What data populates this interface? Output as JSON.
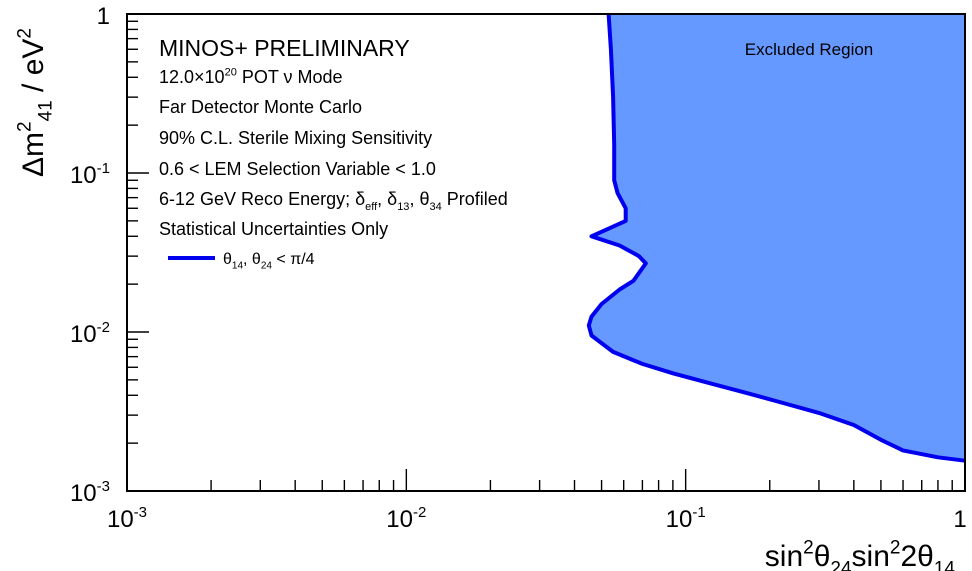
{
  "chart_data": {
    "type": "area",
    "x_scale": "log",
    "y_scale": "log",
    "xlim": [
      0.001,
      1
    ],
    "ylim": [
      0.001,
      1
    ],
    "xlabel": {
      "parts": [
        {
          "t": "sin"
        },
        {
          "t": "2",
          "s": "sup"
        },
        {
          "t": "θ"
        },
        {
          "t": "24",
          "s": "sub"
        },
        {
          "t": "sin"
        },
        {
          "t": "2",
          "s": "sup"
        },
        {
          "t": "2θ"
        },
        {
          "t": "14",
          "s": "sub"
        }
      ]
    },
    "ylabel": {
      "parts": [
        {
          "t": "Δm"
        },
        {
          "t": "2",
          "s": "sup"
        },
        {
          "t": "41",
          "s": "sub"
        },
        {
          "t": " / eV"
        },
        {
          "t": "2",
          "s": "sup"
        }
      ]
    },
    "x_ticks": [
      {
        "value": 0.001,
        "base": "10",
        "exp": "-3"
      },
      {
        "value": 0.01,
        "base": "10",
        "exp": "-2"
      },
      {
        "value": 0.1,
        "base": "10",
        "exp": "-1"
      },
      {
        "value": 1,
        "base": "1",
        "exp": ""
      }
    ],
    "y_ticks": [
      {
        "value": 0.001,
        "base": "10",
        "exp": "-3"
      },
      {
        "value": 0.01,
        "base": "10",
        "exp": "-2"
      },
      {
        "value": 0.1,
        "base": "10",
        "exp": "-1"
      },
      {
        "value": 1,
        "base": "1",
        "exp": ""
      }
    ],
    "fill_color": "#6699ff",
    "line_color": "#0000ee",
    "title_color": "#ff0000",
    "region_label": "Excluded Region",
    "annotation_lines": [
      {
        "color": "#ff0000",
        "size": "large",
        "parts": [
          {
            "t": "MINOS+ PRELIMINARY"
          }
        ]
      },
      {
        "parts": [
          {
            "t": "12.0×10"
          },
          {
            "t": "20",
            "s": "sup"
          },
          {
            "t": " POT ν Mode"
          }
        ]
      },
      {
        "parts": [
          {
            "t": "Far Detector Monte Carlo"
          }
        ]
      },
      {
        "parts": [
          {
            "t": "90% C.L. Sterile Mixing Sensitivity"
          }
        ]
      },
      {
        "parts": [
          {
            "t": "0.6 < LEM Selection Variable < 1.0"
          }
        ]
      },
      {
        "parts": [
          {
            "t": "6-12 GeV Reco Energy; δ"
          },
          {
            "t": "eff",
            "s": "sub"
          },
          {
            "t": ", δ"
          },
          {
            "t": "13",
            "s": "sub"
          },
          {
            "t": ", θ"
          },
          {
            "t": "34",
            "s": "sub"
          },
          {
            "t": " Profiled"
          }
        ]
      },
      {
        "parts": [
          {
            "t": "Statistical Uncertainties Only"
          }
        ]
      }
    ],
    "legend": [
      {
        "parts": [
          {
            "t": "θ"
          },
          {
            "t": "14",
            "s": "sub"
          },
          {
            "t": ", θ"
          },
          {
            "t": "24",
            "s": "sub"
          },
          {
            "t": " < π/4"
          }
        ]
      }
    ],
    "series": [
      {
        "points": [
          [
            0.053,
            1.0
          ],
          [
            0.054,
            0.6
          ],
          [
            0.055,
            0.3
          ],
          [
            0.0555,
            0.15
          ],
          [
            0.0555,
            0.09
          ],
          [
            0.057,
            0.075
          ],
          [
            0.061,
            0.06
          ],
          [
            0.061,
            0.05
          ],
          [
            0.046,
            0.04
          ],
          [
            0.058,
            0.035
          ],
          [
            0.068,
            0.03
          ],
          [
            0.072,
            0.027
          ],
          [
            0.065,
            0.021
          ],
          [
            0.058,
            0.0185
          ],
          [
            0.05,
            0.015
          ],
          [
            0.046,
            0.0125
          ],
          [
            0.045,
            0.011
          ],
          [
            0.046,
            0.0095
          ],
          [
            0.055,
            0.0075
          ],
          [
            0.07,
            0.0063
          ],
          [
            0.09,
            0.0055
          ],
          [
            0.12,
            0.0048
          ],
          [
            0.16,
            0.0042
          ],
          [
            0.22,
            0.0036
          ],
          [
            0.3,
            0.0031
          ],
          [
            0.4,
            0.0026
          ],
          [
            0.5,
            0.0021
          ],
          [
            0.6,
            0.0018
          ],
          [
            0.8,
            0.00163
          ],
          [
            1.0,
            0.00155
          ]
        ]
      }
    ]
  }
}
